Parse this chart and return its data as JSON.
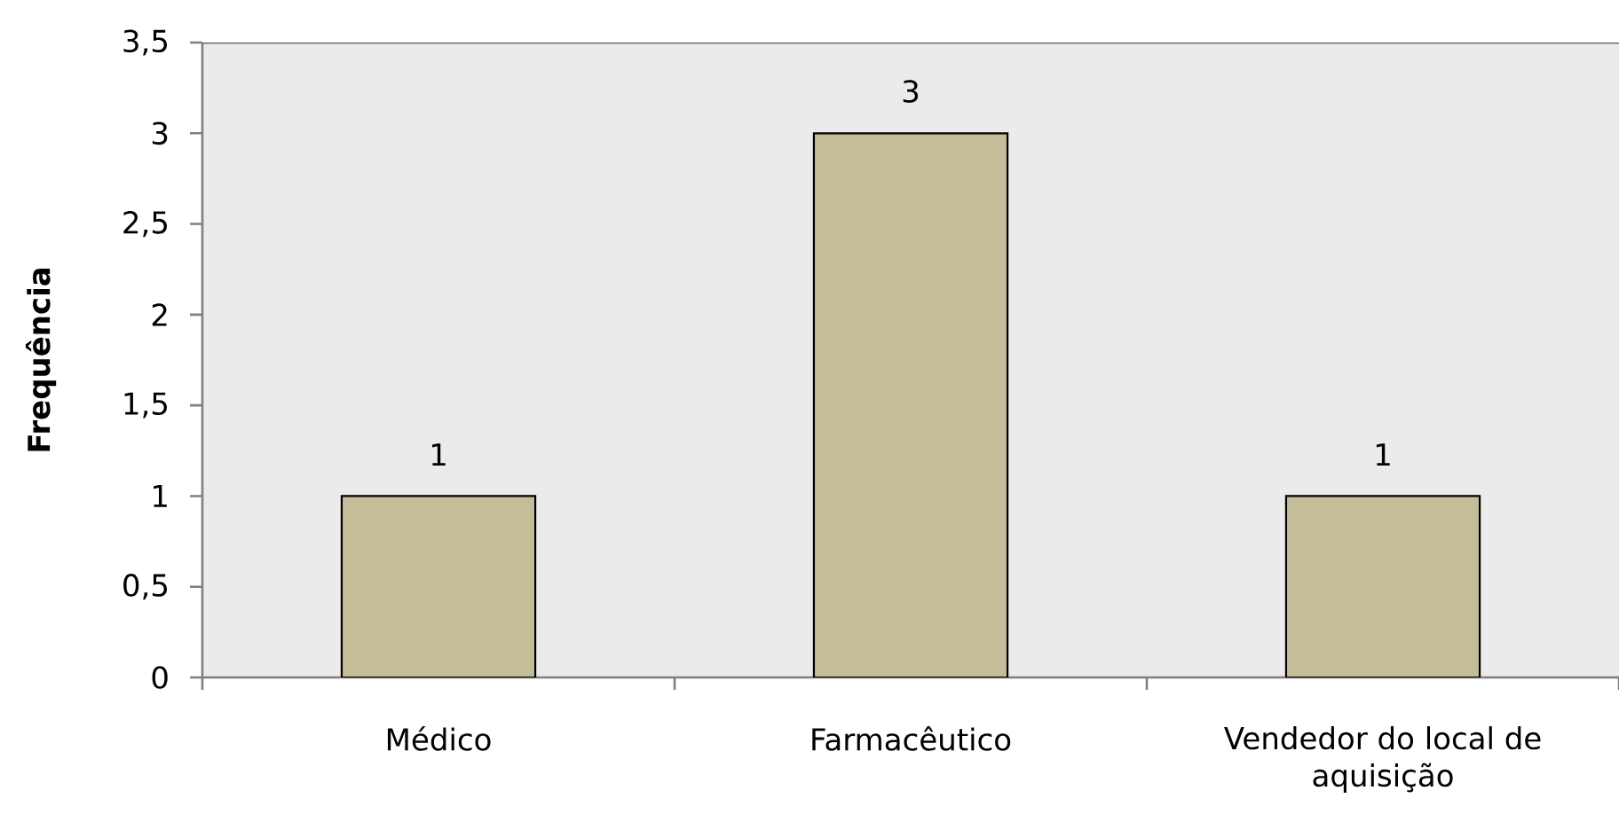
{
  "chart_data": {
    "type": "bar",
    "categories": [
      "Médico",
      "Farmacêutico",
      "Vendedor do local de aquisição"
    ],
    "values": [
      1,
      3,
      1
    ],
    "color": "#c4bd97",
    "ylabel": "Frequência",
    "ylim": [
      0,
      3.5
    ],
    "yticks": [
      0,
      {
        "value": 0.5,
        "label": "0,5"
      },
      1,
      {
        "value": 1.5,
        "label": "1,5"
      },
      2,
      {
        "value": 2.5,
        "label": "2,5"
      },
      3,
      {
        "value": 3.5,
        "label": "3,5"
      }
    ],
    "data_labels": true
  }
}
